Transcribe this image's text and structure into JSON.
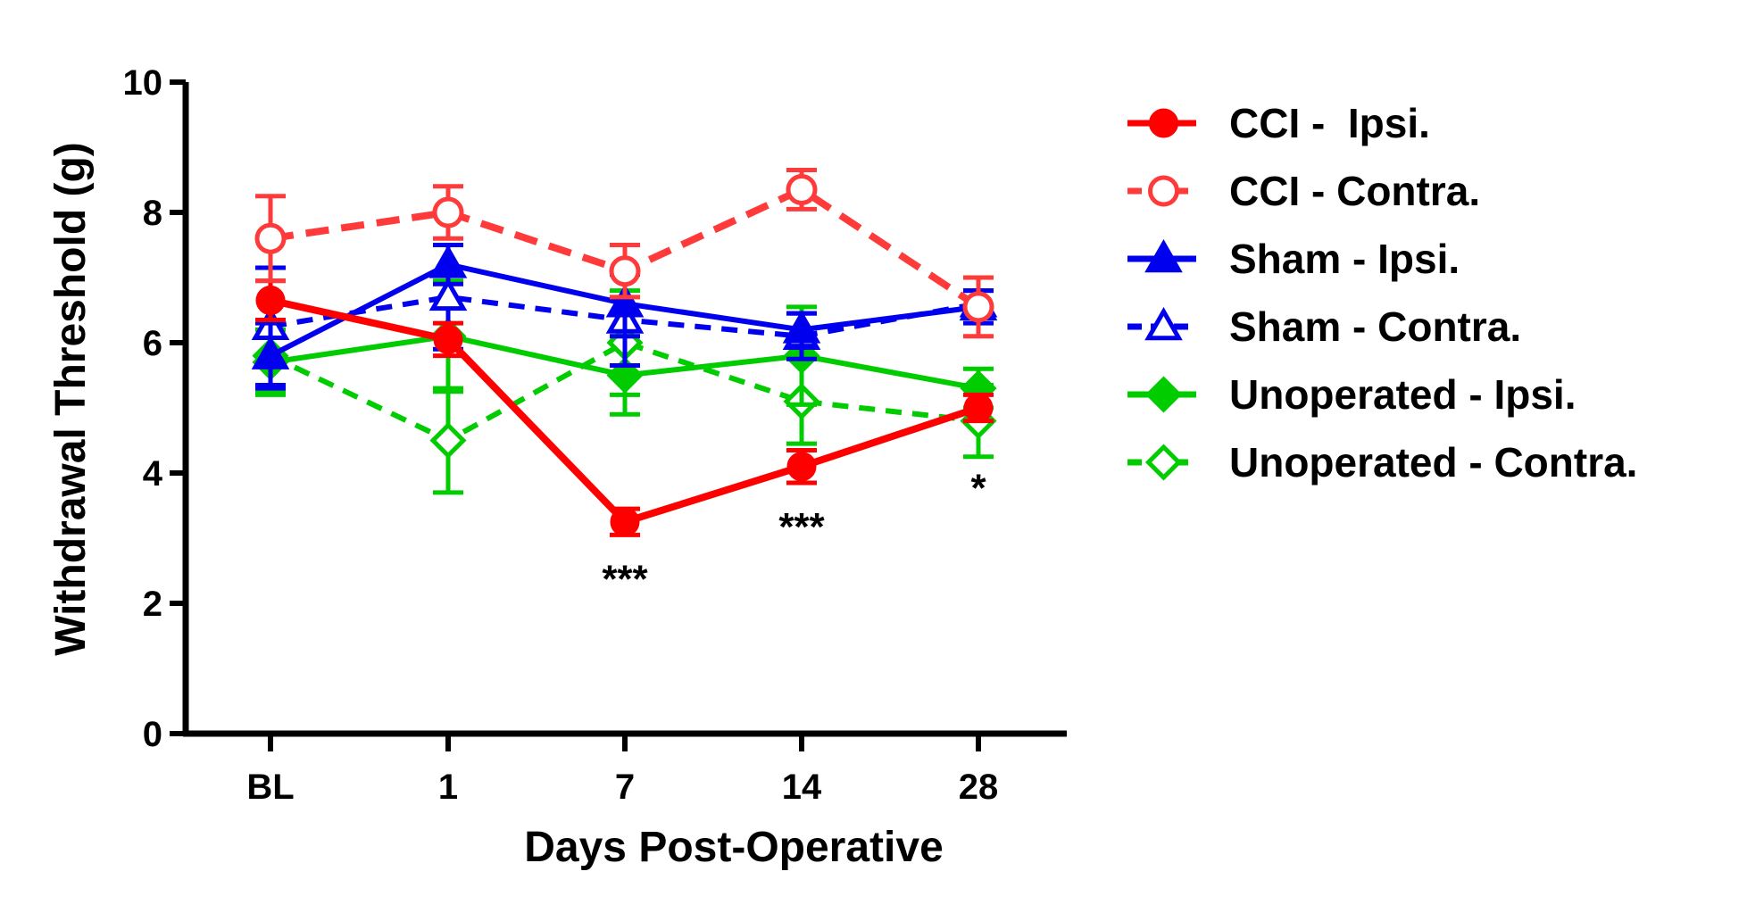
{
  "chart_data": {
    "type": "line",
    "title": "",
    "xlabel": "Days Post-Operative",
    "ylabel": "Withdrawal Threshold (g)",
    "categories": [
      "BL",
      "1",
      "7",
      "14",
      "28"
    ],
    "ylim": [
      0,
      10
    ],
    "yticks": [
      0,
      2,
      4,
      6,
      8,
      10
    ],
    "grid": false,
    "legend_position": "right",
    "series": [
      {
        "name": "CCI -  Ipsi.",
        "values": [
          6.65,
          6.05,
          3.25,
          4.1,
          5.0
        ],
        "errors": [
          0.3,
          0.25,
          0.2,
          0.25,
          0.2
        ],
        "color": "#ff0000",
        "dashed": false,
        "marker": "circle",
        "filled": true
      },
      {
        "name": "CCI - Contra.",
        "values": [
          7.6,
          8.0,
          7.1,
          8.35,
          6.55
        ],
        "errors": [
          0.65,
          0.4,
          0.4,
          0.3,
          0.45
        ],
        "color": "#ff3a3a",
        "dashed": true,
        "marker": "circle",
        "filled": false
      },
      {
        "name": "Sham - Ipsi.",
        "values": [
          5.8,
          7.2,
          6.6,
          6.2,
          6.55
        ],
        "errors": [
          0.5,
          0.3,
          0.5,
          0.25,
          0.25
        ],
        "color": "#0000ee",
        "dashed": false,
        "marker": "triangle",
        "filled": true
      },
      {
        "name": "Sham - Contra.",
        "values": [
          6.25,
          6.7,
          6.35,
          6.1,
          6.6
        ],
        "errors": [
          0.9,
          0.8,
          0.7,
          0.35,
          0.2
        ],
        "color": "#0000ee",
        "dashed": true,
        "marker": "triangle",
        "filled": false
      },
      {
        "name": "Unoperated - Ipsi.",
        "values": [
          5.7,
          6.1,
          5.5,
          5.8,
          5.3
        ],
        "errors": [
          0.5,
          0.85,
          0.6,
          0.75,
          0.3
        ],
        "color": "#00cc00",
        "dashed": false,
        "marker": "diamond",
        "filled": true
      },
      {
        "name": "Unoperated - Contra.",
        "values": [
          5.8,
          4.5,
          6.0,
          5.1,
          4.8
        ],
        "errors": [
          0.55,
          0.8,
          0.8,
          0.65,
          0.55
        ],
        "color": "#00cc00",
        "dashed": true,
        "marker": "diamond",
        "filled": false
      }
    ],
    "annotations": [
      {
        "category": "7",
        "y": 2.5,
        "text": "***"
      },
      {
        "category": "14",
        "y": 3.3,
        "text": "***"
      },
      {
        "category": "28",
        "y": 3.9,
        "text": "*"
      }
    ]
  }
}
